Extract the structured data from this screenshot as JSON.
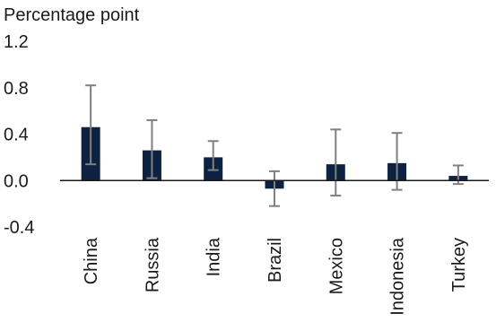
{
  "chart_data": {
    "type": "bar",
    "ylabel": "Percentage point",
    "categories": [
      "China",
      "Russia",
      "India",
      "Brazil",
      "Mexico",
      "Indonesia",
      "Turkey"
    ],
    "values": [
      0.46,
      0.26,
      0.2,
      -0.07,
      0.14,
      0.15,
      0.04
    ],
    "error_low": [
      0.14,
      0.02,
      0.09,
      -0.22,
      -0.13,
      -0.08,
      -0.03
    ],
    "error_high": [
      0.82,
      0.52,
      0.34,
      0.08,
      0.44,
      0.41,
      0.13
    ],
    "ylim": [
      -0.4,
      1.2
    ],
    "yticks": [
      "-0.4",
      "0.0",
      "0.4",
      "0.8",
      "1.2"
    ],
    "grid": false,
    "colors": {
      "bar": "#0d2240",
      "error_bar": "#808080",
      "axis": "#1a1a1a"
    }
  }
}
